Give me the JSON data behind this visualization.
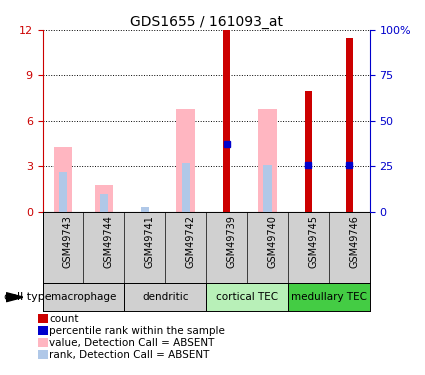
{
  "title": "GDS1655 / 161093_at",
  "samples": [
    "GSM49743",
    "GSM49744",
    "GSM49741",
    "GSM49742",
    "GSM49739",
    "GSM49740",
    "GSM49745",
    "GSM49746"
  ],
  "cell_types": [
    {
      "label": "macrophage",
      "start": 0,
      "end": 1,
      "color": "#d8d8d8"
    },
    {
      "label": "dendritic",
      "start": 2,
      "end": 3,
      "color": "#d8d8d8"
    },
    {
      "label": "cortical TEC",
      "start": 4,
      "end": 5,
      "color": "#aaddaa"
    },
    {
      "label": "medullary TEC",
      "start": 6,
      "end": 7,
      "color": "#55cc55"
    }
  ],
  "pink_bars": [
    4.3,
    1.8,
    0.0,
    6.8,
    0.0,
    6.8,
    0.0,
    0.0
  ],
  "light_blue_bars": [
    2.6,
    1.2,
    0.3,
    3.2,
    0.0,
    3.1,
    0.0,
    0.0
  ],
  "red_bars": [
    0.0,
    0.0,
    0.0,
    0.0,
    12.0,
    0.0,
    8.0,
    11.5
  ],
  "blue_markers": [
    0.0,
    0.0,
    0.0,
    0.0,
    4.5,
    0.0,
    3.1,
    3.1
  ],
  "has_pink": [
    true,
    true,
    true,
    true,
    false,
    true,
    false,
    false
  ],
  "has_light_blue": [
    true,
    true,
    true,
    true,
    false,
    true,
    false,
    false
  ],
  "has_red": [
    false,
    false,
    false,
    false,
    true,
    false,
    true,
    true
  ],
  "has_blue_marker": [
    false,
    false,
    false,
    false,
    true,
    false,
    true,
    true
  ],
  "ylim_left": [
    0,
    12
  ],
  "ylim_right": [
    0,
    100
  ],
  "yticks_left": [
    0,
    3,
    6,
    9,
    12
  ],
  "yticks_right": [
    0,
    25,
    50,
    75,
    100
  ],
  "ytick_labels_right": [
    "0",
    "25",
    "50",
    "75",
    "100%"
  ],
  "pink_color": "#ffb6c1",
  "light_blue_color": "#b0c8e8",
  "red_color": "#cc0000",
  "blue_color": "#0000cc",
  "left_yaxis_color": "#cc0000",
  "right_yaxis_color": "#0000cc",
  "bg_color": "#ffffff",
  "sample_bg": "#d0d0d0",
  "ct_gray": "#d0d0d0",
  "ct_lgreen": "#b8f0b8",
  "ct_dgreen": "#44cc44",
  "legend": [
    {
      "color": "#cc0000",
      "text": "count"
    },
    {
      "color": "#0000cc",
      "text": "percentile rank within the sample"
    },
    {
      "color": "#ffb6c1",
      "text": "value, Detection Call = ABSENT"
    },
    {
      "color": "#b0c8e8",
      "text": "rank, Detection Call = ABSENT"
    }
  ]
}
